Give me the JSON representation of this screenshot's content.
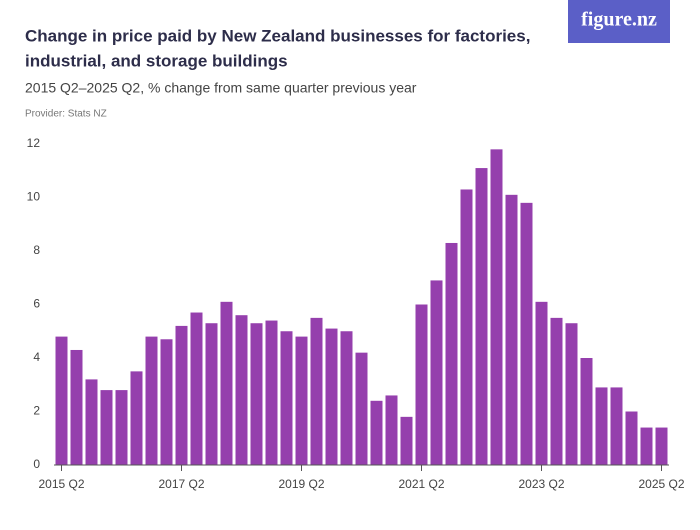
{
  "brand": "figure.nz",
  "chart_data": {
    "type": "bar",
    "title": "Change in price paid by New Zealand businesses for factories, industrial, and storage buildings",
    "title_lines": [
      "Change in price paid by New Zealand businesses for factories,",
      "industrial, and storage buildings"
    ],
    "subtitle": "2015 Q2–2025 Q2, % change from same quarter previous year",
    "provider": "Provider: Stats NZ",
    "categories": [
      "2015 Q2",
      null,
      null,
      null,
      null,
      null,
      null,
      null,
      "2017 Q2",
      null,
      null,
      null,
      null,
      null,
      null,
      null,
      "2019 Q2",
      null,
      null,
      null,
      null,
      null,
      null,
      null,
      "2021 Q2",
      null,
      null,
      null,
      null,
      null,
      null,
      null,
      "2023 Q2",
      null,
      null,
      null,
      null,
      null,
      null,
      null,
      "2025 Q2"
    ],
    "values": [
      4.8,
      4.3,
      3.2,
      2.8,
      2.8,
      3.5,
      4.8,
      4.7,
      5.2,
      5.7,
      5.3,
      6.1,
      5.6,
      5.3,
      5.4,
      5.0,
      4.8,
      5.5,
      5.1,
      5.0,
      4.2,
      2.4,
      2.6,
      1.8,
      6.0,
      6.9,
      8.3,
      10.3,
      11.1,
      11.8,
      10.1,
      9.8,
      6.1,
      5.5,
      5.3,
      4.0,
      2.9,
      2.9,
      2.0,
      1.4,
      1.4
    ],
    "color": "#953fad",
    "ylim": [
      0,
      12
    ],
    "yticks": [
      0,
      2,
      4,
      6,
      8,
      10,
      12
    ],
    "grid": false
  }
}
